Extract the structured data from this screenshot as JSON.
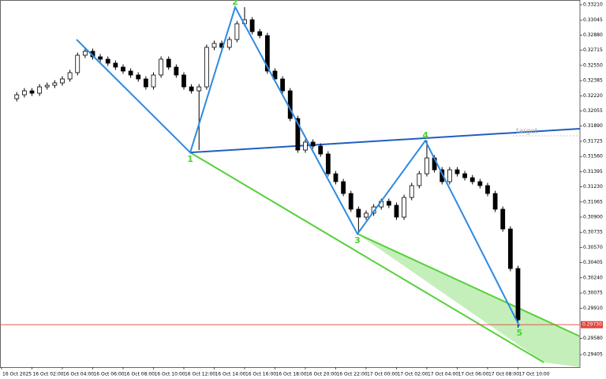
{
  "chart_data": {
    "type": "candlestick",
    "x": [
      1,
      1.5,
      2,
      2.5,
      3,
      3.5,
      4,
      4.5,
      5,
      5.5,
      6,
      6.5,
      7,
      7.5,
      8,
      8.5,
      9,
      9.5,
      10,
      10.5,
      11,
      11.5,
      12,
      12.5,
      13,
      13.5,
      14,
      14.5,
      15,
      15.5,
      16,
      16.5,
      17,
      17.5,
      18,
      18.5,
      19,
      19.5,
      20,
      20.5,
      21,
      21.5,
      22,
      22.5,
      23,
      23.5,
      24,
      24.5,
      25,
      25.5,
      26,
      26.5,
      27,
      27.5,
      28,
      28.5,
      29,
      29.5,
      30,
      30.5,
      31,
      31.5,
      32,
      32.5,
      33,
      33.5,
      34
    ],
    "open": [
      0.32188,
      0.32231,
      0.32274,
      0.32248,
      0.32317,
      0.32334,
      0.3236,
      0.32403,
      0.32472,
      0.32661,
      0.32704,
      0.32644,
      0.32618,
      0.32575,
      0.32532,
      0.32489,
      0.32446,
      0.32403,
      0.32317,
      0.32446,
      0.32618,
      0.32532,
      0.32446,
      0.32317,
      0.32274,
      0.32317,
      0.32747,
      0.3279,
      0.32747,
      0.32832,
      0.33004,
      0.33047,
      0.32918,
      0.32875,
      0.32489,
      0.32403,
      0.32274,
      0.31973,
      0.3163,
      0.31716,
      0.31673,
      0.31587,
      0.31372,
      0.31286,
      0.31157,
      0.30986,
      0.309,
      0.30943,
      0.31011,
      0.31072,
      0.31029,
      0.309,
      0.31114,
      0.31243,
      0.31372,
      0.31544,
      0.31415,
      0.31286,
      0.31415,
      0.31372,
      0.31329,
      0.31286,
      0.31243,
      0.31157,
      0.30986,
      0.30771,
      0.30341
    ],
    "high": [
      0.32261,
      0.32304,
      0.32304,
      0.32347,
      0.32364,
      0.3239,
      0.32433,
      0.32502,
      0.32691,
      0.32734,
      0.32734,
      0.32674,
      0.32648,
      0.32605,
      0.32562,
      0.32519,
      0.32476,
      0.32433,
      0.32476,
      0.32648,
      0.32648,
      0.32562,
      0.32476,
      0.32347,
      0.32347,
      0.32777,
      0.3282,
      0.3282,
      0.32862,
      0.33034,
      0.33185,
      0.33077,
      0.32948,
      0.32905,
      0.32519,
      0.32433,
      0.32304,
      0.32003,
      0.31746,
      0.31746,
      0.31703,
      0.31617,
      0.31402,
      0.31316,
      0.31187,
      0.31016,
      0.30973,
      0.31041,
      0.31102,
      0.31102,
      0.31059,
      0.31144,
      0.31273,
      0.31402,
      0.31733,
      0.31574,
      0.31445,
      0.31445,
      0.31445,
      0.31402,
      0.31359,
      0.31316,
      0.31273,
      0.31187,
      0.31016,
      0.30801,
      0.30371
    ],
    "low": [
      0.32158,
      0.32201,
      0.32218,
      0.32218,
      0.32287,
      0.32304,
      0.3233,
      0.32373,
      0.32442,
      0.32631,
      0.32614,
      0.32588,
      0.32545,
      0.32502,
      0.32459,
      0.32416,
      0.32373,
      0.32287,
      0.32287,
      0.32416,
      0.32502,
      0.32416,
      0.32287,
      0.32244,
      0.3163,
      0.32287,
      0.32717,
      0.32717,
      0.32717,
      0.32802,
      0.32974,
      0.32888,
      0.32845,
      0.32459,
      0.32373,
      0.32244,
      0.31943,
      0.316,
      0.316,
      0.31643,
      0.31557,
      0.31342,
      0.31256,
      0.31127,
      0.30956,
      0.30719,
      0.3087,
      0.30913,
      0.30981,
      0.30999,
      0.3087,
      0.3087,
      0.31084,
      0.31213,
      0.31342,
      0.31385,
      0.31256,
      0.31256,
      0.31342,
      0.31299,
      0.31256,
      0.31213,
      0.31127,
      0.30956,
      0.30741,
      0.30311,
      0.29697
    ],
    "close": [
      0.32231,
      0.32274,
      0.32248,
      0.32317,
      0.32334,
      0.3236,
      0.32403,
      0.32472,
      0.32661,
      0.32704,
      0.32644,
      0.32618,
      0.32575,
      0.32532,
      0.32489,
      0.32446,
      0.32403,
      0.32317,
      0.32446,
      0.32618,
      0.32532,
      0.32446,
      0.32317,
      0.32274,
      0.32317,
      0.32747,
      0.3279,
      0.32747,
      0.32832,
      0.33004,
      0.33047,
      0.32918,
      0.32875,
      0.32489,
      0.32403,
      0.32274,
      0.31973,
      0.3163,
      0.31716,
      0.31673,
      0.31587,
      0.31372,
      0.31286,
      0.31157,
      0.30986,
      0.309,
      0.30943,
      0.31011,
      0.31072,
      0.31029,
      0.309,
      0.31114,
      0.31243,
      0.31372,
      0.31544,
      0.31415,
      0.31286,
      0.31415,
      0.31372,
      0.31329,
      0.31286,
      0.31243,
      0.31157,
      0.30986,
      0.30771,
      0.30341,
      0.29783
    ],
    "up_color": "#ffffff",
    "down_color": "#000000",
    "xlim": [
      0,
      38.08
    ],
    "ylim": [
      0.29268,
      0.33262
    ],
    "xticks": [
      {
        "value": 0,
        "label": "16 Oct 2025"
      },
      {
        "value": 2,
        "label": "16 Oct 02:00"
      },
      {
        "value": 4,
        "label": "16 Oct 04:00"
      },
      {
        "value": 6,
        "label": "16 Oct 06:00"
      },
      {
        "value": 8,
        "label": "16 Oct 08:00"
      },
      {
        "value": 10,
        "label": "16 Oct 10:00"
      },
      {
        "value": 12,
        "label": "16 Oct 12:00"
      },
      {
        "value": 14,
        "label": "16 Oct 14:00"
      },
      {
        "value": 16,
        "label": "16 Oct 16:00"
      },
      {
        "value": 18,
        "label": "16 Oct 18:00"
      },
      {
        "value": 20,
        "label": "16 Oct 20:00"
      },
      {
        "value": 22,
        "label": "16 Oct 22:00"
      },
      {
        "value": 24,
        "label": "17 Oct 00:00"
      },
      {
        "value": 26,
        "label": "17 Oct 02:00"
      },
      {
        "value": 28,
        "label": "17 Oct 04:00"
      },
      {
        "value": 30,
        "label": "17 Oct 06:00"
      },
      {
        "value": 32,
        "label": "17 Oct 08:00"
      },
      {
        "value": 34,
        "label": "17 Oct 10:00"
      }
    ],
    "yticks": [
      {
        "value": 0.3321,
        "label": "0.33210"
      },
      {
        "value": 0.33045,
        "label": "0.33045"
      },
      {
        "value": 0.3288,
        "label": "0.32880"
      },
      {
        "value": 0.32715,
        "label": "0.32715"
      },
      {
        "value": 0.3255,
        "label": "0.32550"
      },
      {
        "value": 0.32385,
        "label": "0.32385"
      },
      {
        "value": 0.3222,
        "label": "0.32220"
      },
      {
        "value": 0.32055,
        "label": "0.32055"
      },
      {
        "value": 0.3189,
        "label": "0.31890"
      },
      {
        "value": 0.31725,
        "label": "0.31725"
      },
      {
        "value": 0.3156,
        "label": "0.31560"
      },
      {
        "value": 0.31395,
        "label": "0.31395"
      },
      {
        "value": 0.3123,
        "label": "0.31230"
      },
      {
        "value": 0.31065,
        "label": "0.31065"
      },
      {
        "value": 0.309,
        "label": "0.30900"
      },
      {
        "value": 0.30735,
        "label": "0.30735"
      },
      {
        "value": 0.3057,
        "label": "0.30570"
      },
      {
        "value": 0.30405,
        "label": "0.30405"
      },
      {
        "value": 0.3024,
        "label": "0.30240"
      },
      {
        "value": 0.30075,
        "label": "0.30075"
      },
      {
        "value": 0.2991,
        "label": "0.29910"
      },
      {
        "value": 0.2958,
        "label": "0.29580"
      },
      {
        "value": 0.29405,
        "label": "0.29405"
      }
    ],
    "current_price": {
      "value": 0.2973,
      "label": "0.29730",
      "color": "#e0463c"
    },
    "waves": {
      "x": [
        4.94,
        12.42,
        15.38,
        23.43,
        27.9,
        34.1
      ],
      "values": [
        0.32832,
        0.31603,
        0.33184,
        0.30718,
        0.31732,
        0.29714
      ],
      "labels": [
        null,
        "1",
        "2",
        "3",
        "4",
        "5"
      ],
      "color": "#2d8ae0"
    },
    "target_line": {
      "label": "target",
      "x": [
        12.42,
        38.08
      ],
      "values": [
        0.31603,
        0.31862
      ],
      "color": "#1f5fbf"
    },
    "green_lines": {
      "color": "#55d13a",
      "lines": [
        {
          "x": [
            12.42,
            35.7
          ],
          "values": [
            0.31603,
            0.29319
          ]
        },
        {
          "x": [
            23.43,
            38.08
          ],
          "values": [
            0.30718,
            0.29603
          ]
        }
      ]
    },
    "grid": false
  }
}
